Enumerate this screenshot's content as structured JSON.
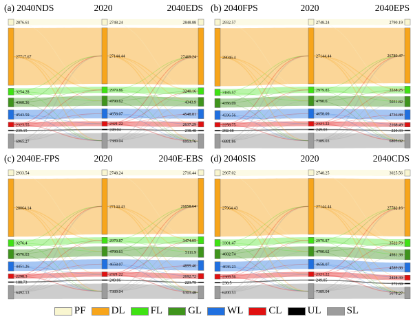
{
  "chart_data": {
    "type": "sankey",
    "description": "Land-use transfer Sankey diagrams between 2020 and 2040 scenarios, four panels",
    "categories": [
      "PF",
      "DL",
      "FL",
      "GL",
      "WL",
      "CL",
      "UL",
      "SL"
    ],
    "colors": {
      "PF": "#F9F6D0",
      "DL": "#F7A51B",
      "FL": "#3FE213",
      "GL": "#3F941C",
      "WL": "#2070E0",
      "CL": "#E11010",
      "UL": "#000000",
      "SL": "#9C9C9C"
    },
    "flow_opacity": {
      "PF": 0.55,
      "DL": 0.45,
      "FL": 0.36,
      "GL": 0.42,
      "WL": 0.4,
      "CL": 0.38,
      "UL": 0.7,
      "SL": 0.5
    },
    "panels": [
      {
        "id": "a",
        "titles": {
          "left": "(a) 2040NDS",
          "center": "2020",
          "right": "2040EDS"
        },
        "columns": {
          "left": [
            2876.61,
            27717.67,
            3254.28,
            4360.36,
            4543.59,
            2323.55,
            239.15,
            6965.27
          ],
          "center": [
            2748.24,
            27144.44,
            2979.86,
            4790.62,
            4658.07,
            2321.22,
            249.04,
            7389.04
          ],
          "right": [
            2848.88,
            27469.24,
            3240.16,
            4343.9,
            4548.81,
            2637.29,
            238.48,
            6953.76
          ]
        }
      },
      {
        "id": "b",
        "titles": {
          "left": "(b) 2040FPS",
          "center": "2020",
          "right": "2040EPS"
        },
        "columns": {
          "left": [
            2932.57,
            28046.4,
            3185.57,
            4356.09,
            4336.56,
            2258.75,
            282.68,
            6881.86
          ],
          "center": [
            2748.24,
            27144.44,
            2979.85,
            4790.6,
            4658.09,
            2321.22,
            249.03,
            7389.03
          ],
          "right": [
            2790.19,
            26789.47,
            3538.25,
            5031.82,
            4736.88,
            2168.49,
            220.33,
            6805.02
          ]
        }
      },
      {
        "id": "c",
        "titles": {
          "left": "(c) 2040E-FPS",
          "center": "2020",
          "right": "2040E-EBS"
        },
        "columns": {
          "left": [
            2933.54,
            28064.14,
            3276.4,
            4576.03,
            4451.26,
            2298.3,
            188.73,
            6492.13
          ],
          "center": [
            2748.24,
            27144.43,
            2979.87,
            4790.61,
            4658.07,
            2321.22,
            249.06,
            7389.04
          ],
          "right": [
            2716.44,
            26858.64,
            3474.05,
            5111.9,
            4899.46,
            2692.72,
            223.79,
            6303.48
          ]
        }
      },
      {
        "id": "d",
        "titles": {
          "left": "(d) 2040SIS",
          "center": "2020",
          "right": "2040CDS"
        },
        "columns": {
          "left": [
            2967.02,
            27964.43,
            3301.47,
            4602.74,
            4636.23,
            2369.56,
            238.5,
            6200.53
          ],
          "center": [
            2748.25,
            27144.44,
            2979.87,
            4790.62,
            4658.07,
            2321.22,
            249.05,
            7389.04
          ],
          "right": [
            3025.56,
            27782.16,
            3522.79,
            4981.38,
            4589.88,
            2428.39,
            272.69,
            5678.27
          ]
        }
      }
    ]
  },
  "legend": {
    "items": [
      {
        "label": "PF",
        "color": "#F9F6D0"
      },
      {
        "label": "DL",
        "color": "#F7A51B"
      },
      {
        "label": "FL",
        "color": "#3FE213"
      },
      {
        "label": "GL",
        "color": "#3F941C"
      },
      {
        "label": "WL",
        "color": "#2070E0"
      },
      {
        "label": "CL",
        "color": "#E11010"
      },
      {
        "label": "UL",
        "color": "#000000"
      },
      {
        "label": "SL",
        "color": "#9C9C9C"
      }
    ]
  }
}
